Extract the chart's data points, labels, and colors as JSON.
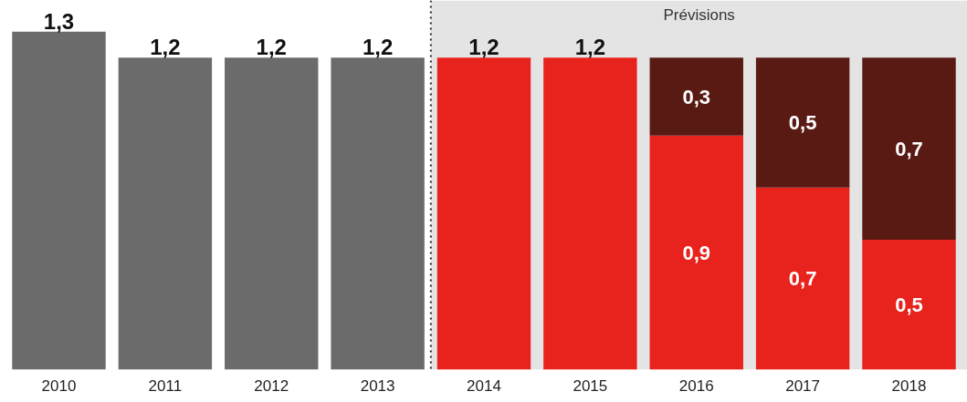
{
  "chart_data": {
    "type": "bar",
    "stacked": true,
    "categories": [
      "2010",
      "2011",
      "2012",
      "2013",
      "2014",
      "2015",
      "2016",
      "2017",
      "2018"
    ],
    "series": [
      {
        "colors": [
          "#6b6b6b",
          "#6b6b6b",
          "#6b6b6b",
          "#6b6b6b",
          "#e8221c",
          "#e8221c",
          "#e8221c",
          "#e8221c",
          "#e8221c"
        ],
        "values": [
          1.3,
          1.2,
          1.2,
          1.2,
          1.2,
          1.2,
          0.9,
          0.7,
          0.5
        ],
        "value_labels": [
          "1,3",
          "1,2",
          "1,2",
          "1,2",
          "1,2",
          "1,2",
          "0,9",
          "0,7",
          "0,5"
        ]
      },
      {
        "color": "#5a1a14",
        "values": [
          null,
          null,
          null,
          null,
          null,
          null,
          0.3,
          0.5,
          0.7
        ],
        "value_labels": [
          null,
          null,
          null,
          null,
          null,
          null,
          "0,3",
          "0,5",
          "0,7"
        ]
      }
    ],
    "ylim": [
      0,
      1.42
    ],
    "bands": [
      {
        "axis": "x",
        "from": "2014",
        "to": "2018",
        "label": "Prévisions",
        "color": "#e4e4e4"
      }
    ],
    "grid": false
  }
}
